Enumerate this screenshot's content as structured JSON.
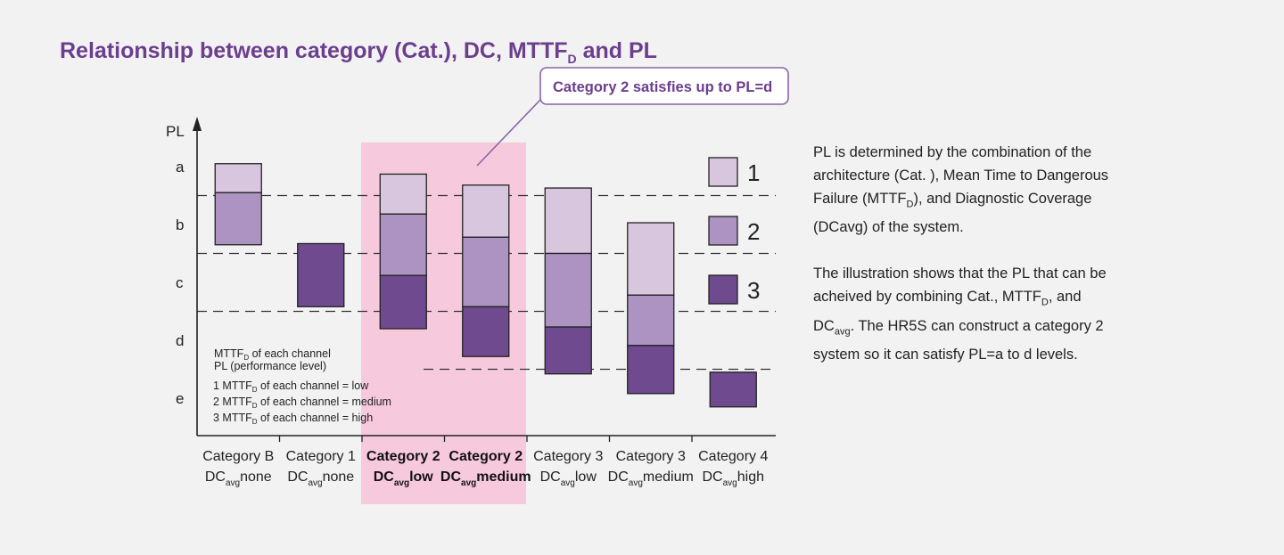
{
  "title": {
    "main": "Relationship between category (Cat.), DC, MTTF",
    "sub": "D",
    "tail": " and PL"
  },
  "callout": "Category 2 satisfies up to PL=d",
  "colors": {
    "title": "#6b3e8e",
    "level1": "#d8c6df",
    "level2": "#ac93c1",
    "level3": "#6f4a8e",
    "highlight": "#f7c9dd",
    "border": "#222222"
  },
  "chart_data": {
    "type": "bar",
    "subtype": "floating-stacked",
    "y_axis": {
      "label": "PL",
      "levels": [
        "a",
        "b",
        "c",
        "d",
        "e"
      ],
      "direction": "top-to-bottom"
    },
    "thresholds_pl": [
      1.5,
      2.5,
      3.5,
      4.5
    ],
    "highlight_categories": [
      2,
      3
    ],
    "categories": [
      {
        "line1": "Category B",
        "dc": "none",
        "bold": false,
        "segments": [
          {
            "level": 1,
            "from": 0.95,
            "to": 1.45
          },
          {
            "level": 2,
            "from": 1.45,
            "to": 2.35
          }
        ]
      },
      {
        "line1": "Category 1",
        "dc": "none",
        "bold": false,
        "segments": [
          {
            "level": 3,
            "from": 2.33,
            "to": 3.42
          }
        ]
      },
      {
        "line1": "Category 2",
        "dc": "low",
        "bold": true,
        "segments": [
          {
            "level": 1,
            "from": 1.13,
            "to": 1.82
          },
          {
            "level": 2,
            "from": 1.82,
            "to": 2.88
          },
          {
            "level": 3,
            "from": 2.88,
            "to": 3.8
          }
        ]
      },
      {
        "line1": "Category 2",
        "dc": "medium",
        "bold": true,
        "segments": [
          {
            "level": 1,
            "from": 1.32,
            "to": 2.22
          },
          {
            "level": 2,
            "from": 2.22,
            "to": 3.42
          },
          {
            "level": 3,
            "from": 3.42,
            "to": 4.28
          }
        ]
      },
      {
        "line1": "Category 3",
        "dc": "low",
        "bold": false,
        "segments": [
          {
            "level": 1,
            "from": 1.37,
            "to": 2.5
          },
          {
            "level": 2,
            "from": 2.5,
            "to": 3.77
          },
          {
            "level": 3,
            "from": 3.77,
            "to": 4.58
          }
        ]
      },
      {
        "line1": "Category 3",
        "dc": "medium",
        "bold": false,
        "segments": [
          {
            "level": 1,
            "from": 1.97,
            "to": 3.22
          },
          {
            "level": 2,
            "from": 3.22,
            "to": 4.09
          },
          {
            "level": 3,
            "from": 4.09,
            "to": 4.92
          }
        ]
      },
      {
        "line1": "Category 4",
        "dc": "high",
        "bold": false,
        "segments": [
          {
            "level": 3,
            "from": 4.55,
            "to": 5.15
          }
        ]
      }
    ],
    "dc_prefix": "DC",
    "dc_sub": "avg",
    "legend": [
      {
        "level": 1,
        "label": "1"
      },
      {
        "level": 2,
        "label": "2"
      },
      {
        "level": 3,
        "label": "3"
      }
    ],
    "notes": [
      [
        "MTTF",
        "D",
        " of each channel"
      ],
      [
        "PL (performance level)",
        "",
        ""
      ],
      [
        "1 MTTF",
        "D",
        " of each channel = low"
      ],
      [
        "2 MTTF",
        "D",
        " of each channel = medium"
      ],
      [
        "3 MTTF",
        "D",
        " of each channel = high"
      ]
    ]
  },
  "description": {
    "p1": [
      "PL is determined by the combination of the architecture (Cat. ), Mean Time to Dangerous Failure (MTTF",
      "D",
      "), and Diagnostic Coverage (DCavg) of the system."
    ],
    "p2": [
      "The illustration shows that the PL that can be acheived by combining Cat., MTTF",
      "D",
      ", and DC",
      "avg",
      ". The HR5S can construct a category 2 system so it can satisfy PL=a to d levels."
    ]
  }
}
